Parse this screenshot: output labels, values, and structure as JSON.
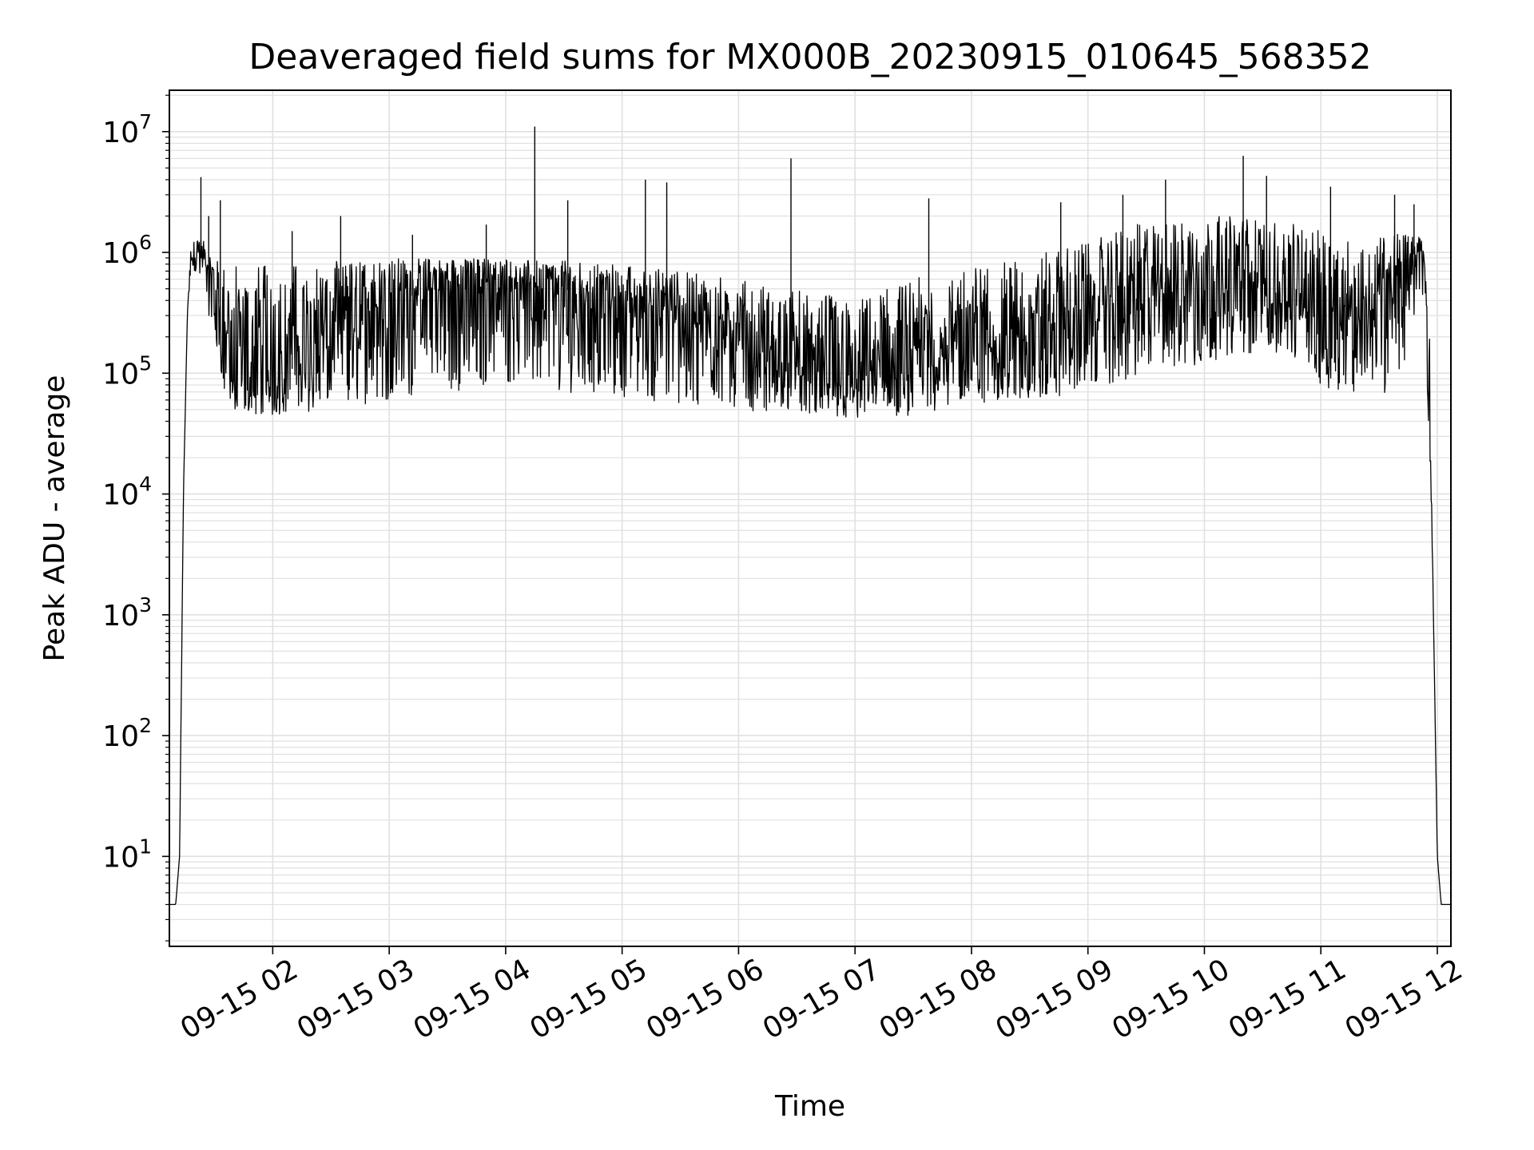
{
  "chart_data": {
    "type": "line",
    "title": "Deaveraged field sums for MX000B_20230915_010645_568352",
    "xlabel": "Time",
    "ylabel": "Peak ADU - average",
    "yscale": "log",
    "ylim": [
      1.8,
      22000000
    ],
    "xlim": [
      "2023-09-15 01:06:45",
      "2023-09-15 12:07:00"
    ],
    "grid": true,
    "legend": "none",
    "line_color": "#000000",
    "grid_color": "#e0e0e0",
    "x_ticks": [
      {
        "value": "2023-09-15 02:00",
        "label": "09-15 02"
      },
      {
        "value": "2023-09-15 03:00",
        "label": "09-15 03"
      },
      {
        "value": "2023-09-15 04:00",
        "label": "09-15 04"
      },
      {
        "value": "2023-09-15 05:00",
        "label": "09-15 05"
      },
      {
        "value": "2023-09-15 06:00",
        "label": "09-15 06"
      },
      {
        "value": "2023-09-15 07:00",
        "label": "09-15 07"
      },
      {
        "value": "2023-09-15 08:00",
        "label": "09-15 08"
      },
      {
        "value": "2023-09-15 09:00",
        "label": "09-15 09"
      },
      {
        "value": "2023-09-15 10:00",
        "label": "09-15 10"
      },
      {
        "value": "2023-09-15 11:00",
        "label": "09-15 11"
      },
      {
        "value": "2023-09-15 12:00",
        "label": "09-15 12"
      }
    ],
    "y_ticks": [
      {
        "value": 10,
        "base": "10",
        "exp": "1"
      },
      {
        "value": 100,
        "base": "10",
        "exp": "2"
      },
      {
        "value": 1000,
        "base": "10",
        "exp": "3"
      },
      {
        "value": 10000,
        "base": "10",
        "exp": "4"
      },
      {
        "value": 100000,
        "base": "10",
        "exp": "5"
      },
      {
        "value": 1000000,
        "base": "10",
        "exp": "6"
      },
      {
        "value": 10000000,
        "base": "10",
        "exp": "7"
      }
    ],
    "series_x": [
      "2023-09-15 01:06:45",
      "2023-09-15 01:10:00",
      "2023-09-15 01:12:00",
      "2023-09-15 01:14:00",
      "2023-09-15 01:16:00",
      "2023-09-15 01:18:00",
      "2023-09-15 01:20:00",
      "2023-09-15 01:25:00",
      "2023-09-15 01:30:00",
      "2023-09-15 01:35:00",
      "2023-09-15 01:40:00",
      "2023-09-15 01:45:00",
      "2023-09-15 02:00:00",
      "2023-09-15 02:30:00",
      "2023-09-15 03:00:00",
      "2023-09-15 03:30:00",
      "2023-09-15 04:00:00",
      "2023-09-15 04:17:00",
      "2023-09-15 04:30:00",
      "2023-09-15 05:00:00",
      "2023-09-15 05:30:00",
      "2023-09-15 06:00:00",
      "2023-09-15 06:30:00",
      "2023-09-15 07:00:00",
      "2023-09-15 07:30:00",
      "2023-09-15 08:00:00",
      "2023-09-15 08:30:00",
      "2023-09-15 09:00:00",
      "2023-09-15 09:30:00",
      "2023-09-15 10:00:00",
      "2023-09-15 10:20:00",
      "2023-09-15 10:40:00",
      "2023-09-15 11:00:00",
      "2023-09-15 11:20:00",
      "2023-09-15 11:40:00",
      "2023-09-15 11:50:00",
      "2023-09-15 11:53:00",
      "2023-09-15 11:56:00",
      "2023-09-15 11:58:00",
      "2023-09-15 12:00:00",
      "2023-09-15 12:02:00",
      "2023-09-15 12:07:00"
    ],
    "series_y": [
      4,
      4,
      10,
      10000,
      300000,
      1000000,
      1100000,
      800000,
      400000,
      150000,
      90000,
      80000,
      80000,
      200000,
      400000,
      500000,
      600000,
      500000,
      500000,
      350000,
      250000,
      150000,
      100000,
      80000,
      100000,
      150000,
      150000,
      250000,
      400000,
      500000,
      500000,
      400000,
      300000,
      250000,
      400000,
      1200000,
      1000000,
      100000,
      1000,
      10,
      4,
      4
    ],
    "envelope_y": {
      "trough": [
        4,
        4,
        10,
        10000,
        300000,
        700000,
        600000,
        400000,
        200000,
        70000,
        50000,
        45000,
        45000,
        50000,
        60000,
        70000,
        80000,
        75000,
        70000,
        60000,
        55000,
        50000,
        45000,
        40000,
        45000,
        55000,
        60000,
        70000,
        90000,
        120000,
        150000,
        130000,
        80000,
        60000,
        70000,
        400000,
        300000,
        20000,
        1000,
        10,
        4,
        4
      ],
      "crest": [
        4,
        4,
        10,
        10000,
        300000,
        1300000,
        1500000,
        1200000,
        900000,
        800000,
        800000,
        800000,
        800000,
        850000,
        900000,
        900000,
        900000,
        850000,
        850000,
        800000,
        700000,
        600000,
        500000,
        400000,
        600000,
        800000,
        900000,
        1300000,
        1800000,
        2000000,
        2000000,
        1800000,
        1500000,
        1200000,
        1500000,
        1400000,
        1200000,
        200000,
        1000,
        10,
        4,
        4
      ]
    },
    "spikes": [
      {
        "x": "2023-09-15 01:23:00",
        "y": 4200000
      },
      {
        "x": "2023-09-15 01:27:00",
        "y": 2000000
      },
      {
        "x": "2023-09-15 01:33:00",
        "y": 2700000
      },
      {
        "x": "2023-09-15 02:10:00",
        "y": 1500000
      },
      {
        "x": "2023-09-15 02:35:00",
        "y": 2000000
      },
      {
        "x": "2023-09-15 03:12:00",
        "y": 1400000
      },
      {
        "x": "2023-09-15 03:50:00",
        "y": 1700000
      },
      {
        "x": "2023-09-15 04:15:00",
        "y": 11000000
      },
      {
        "x": "2023-09-15 04:32:00",
        "y": 2700000
      },
      {
        "x": "2023-09-15 05:12:00",
        "y": 4000000
      },
      {
        "x": "2023-09-15 05:23:00",
        "y": 3800000
      },
      {
        "x": "2023-09-15 06:27:00",
        "y": 6000000
      },
      {
        "x": "2023-09-15 07:38:00",
        "y": 2800000
      },
      {
        "x": "2023-09-15 08:46:00",
        "y": 2600000
      },
      {
        "x": "2023-09-15 09:18:00",
        "y": 3000000
      },
      {
        "x": "2023-09-15 09:40:00",
        "y": 4000000
      },
      {
        "x": "2023-09-15 10:20:00",
        "y": 6300000
      },
      {
        "x": "2023-09-15 10:32:00",
        "y": 4300000
      },
      {
        "x": "2023-09-15 11:05:00",
        "y": 3500000
      },
      {
        "x": "2023-09-15 11:38:00",
        "y": 3000000
      },
      {
        "x": "2023-09-15 11:48:00",
        "y": 2500000
      }
    ]
  }
}
